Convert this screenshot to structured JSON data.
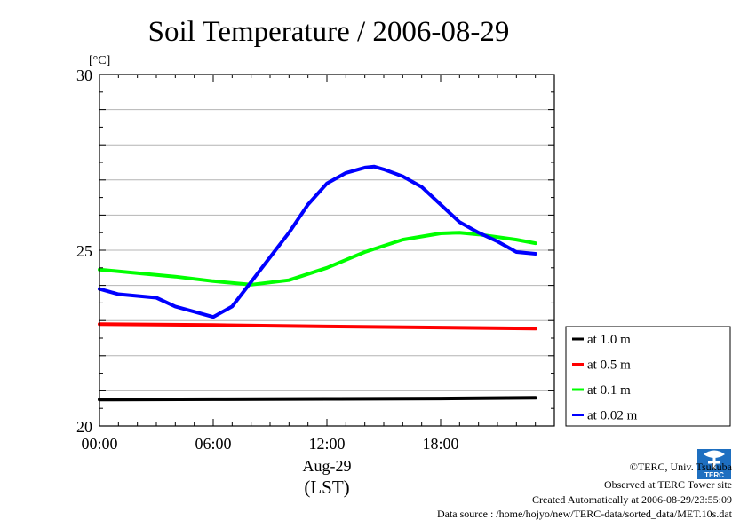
{
  "chart_data": {
    "type": "line",
    "title": "Soil Temperature / 2006-08-29",
    "ylabel": "[°C]",
    "xlabel": "Aug-29",
    "xlabel2": "(LST)",
    "ylim": [
      20,
      30
    ],
    "xlim": [
      0,
      23
    ],
    "y_ticks": [
      20,
      25,
      30
    ],
    "y_tick_labels": [
      "20",
      "25",
      "30"
    ],
    "x_ticks": [
      0,
      6,
      12,
      18
    ],
    "x_tick_labels": [
      "00:00",
      "06:00",
      "12:00",
      "18:00"
    ],
    "grid": true,
    "legend_position": "right",
    "series": [
      {
        "name": "at 1.0 m",
        "color": "#000000",
        "x": [
          0,
          6,
          12,
          18,
          23
        ],
        "y": [
          20.75,
          20.76,
          20.77,
          20.78,
          20.8
        ]
      },
      {
        "name": "at 0.5 m",
        "color": "#ff0000",
        "x": [
          0,
          6,
          12,
          18,
          23
        ],
        "y": [
          22.9,
          22.87,
          22.83,
          22.8,
          22.77
        ]
      },
      {
        "name": "at 0.1 m",
        "color": "#00ff00",
        "x": [
          0,
          2,
          4,
          6,
          8,
          10,
          12,
          14,
          16,
          18,
          19,
          20,
          22,
          23
        ],
        "y": [
          24.45,
          24.35,
          24.25,
          24.12,
          24.02,
          24.15,
          24.5,
          24.95,
          25.3,
          25.48,
          25.5,
          25.45,
          25.3,
          25.2
        ]
      },
      {
        "name": "at 0.02 m",
        "color": "#0000ff",
        "x": [
          0,
          1,
          2,
          3,
          4,
          5,
          6,
          7,
          8,
          9,
          10,
          11,
          12,
          13,
          14,
          14.5,
          15,
          16,
          17,
          18,
          19,
          20,
          21,
          22,
          23
        ],
        "y": [
          23.9,
          23.75,
          23.7,
          23.65,
          23.4,
          23.25,
          23.1,
          23.4,
          24.1,
          24.8,
          25.5,
          26.3,
          26.9,
          27.2,
          27.35,
          27.38,
          27.3,
          27.1,
          26.8,
          26.3,
          25.8,
          25.5,
          25.25,
          24.95,
          24.9
        ]
      }
    ]
  },
  "credits": {
    "copyright": "©TERC, Univ. Tsukuba",
    "site": "Observed at TERC Tower site",
    "created": "Created Automatically at 2006-08-29/23:55:09",
    "source": "Data source : /home/hojyo/new/TERC-data/sorted_data/MET.10s.dat"
  },
  "logo": {
    "text": "TERC",
    "color": "#1e6fc0"
  }
}
